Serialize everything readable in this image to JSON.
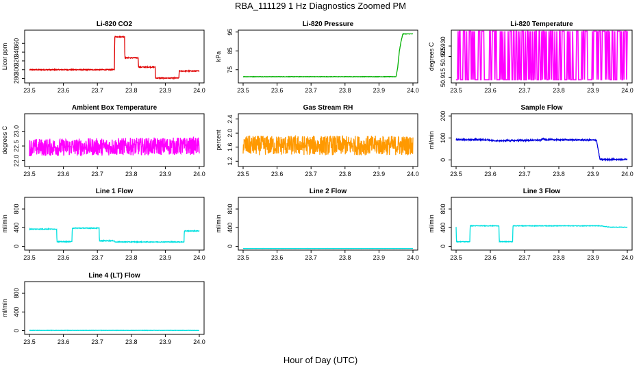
{
  "page": {
    "title": "RBA_111129  1 Hz Diagnostics Zoomed PM",
    "xlabel": "Hour of Day (UTC)"
  },
  "chart_data": [
    {
      "id": "co2",
      "type": "line",
      "title": "Li-820 CO2",
      "ylabel": "Licor ppm",
      "color": "#e00000",
      "xlim": [
        23.5,
        24.0
      ],
      "ylim": [
        270,
        390
      ],
      "yticks": [
        280,
        300,
        320,
        340,
        360
      ],
      "xticks": [
        23.5,
        23.6,
        23.7,
        23.8,
        23.9,
        24.0
      ],
      "noise": 1.0,
      "x": [
        23.5,
        23.75,
        23.751,
        23.78,
        23.781,
        23.82,
        23.821,
        23.87,
        23.871,
        23.94,
        23.941,
        24.0
      ],
      "y": [
        300,
        300,
        375,
        375,
        327,
        327,
        306,
        306,
        281,
        281,
        297,
        297
      ]
    },
    {
      "id": "pressure",
      "type": "line",
      "title": "Li-820 Pressure",
      "ylabel": "kPa",
      "color": "#00b000",
      "xlim": [
        23.5,
        24.0
      ],
      "ylim": [
        68,
        96
      ],
      "yticks": [
        75,
        85,
        95
      ],
      "xticks": [
        23.5,
        23.6,
        23.7,
        23.8,
        23.9,
        24.0
      ],
      "noise": 0.1,
      "x": [
        23.5,
        23.95,
        23.955,
        23.96,
        23.965,
        23.97,
        24.0
      ],
      "y": [
        71.3,
        71.3,
        76,
        85,
        90,
        94,
        94
      ]
    },
    {
      "id": "licor_temp",
      "type": "line",
      "title": "Li-820 Temperature",
      "ylabel": "degrees C",
      "color": "#ff00ff",
      "xlim": [
        23.5,
        24.0
      ],
      "ylim": [
        50.9125,
        50.9375
      ],
      "yticks": [
        50.915,
        50.925,
        50.93
      ],
      "xticks": [
        23.5,
        23.6,
        23.7,
        23.8,
        23.9,
        24.0
      ],
      "pattern": "binary",
      "levels": [
        50.914,
        50.937
      ],
      "x": [
        23.5,
        24.0
      ],
      "y": [
        50.914,
        50.937
      ]
    },
    {
      "id": "ambient",
      "type": "line",
      "title": "Ambient Box Temperature",
      "ylabel": "degrees C",
      "color": "#ff00ff",
      "xlim": [
        23.5,
        24.0
      ],
      "ylim": [
        21.8,
        23.6
      ],
      "yticks": [
        22.0,
        22.5,
        23.0
      ],
      "xticks": [
        23.5,
        23.6,
        23.7,
        23.8,
        23.9,
        24.0
      ],
      "noise": 0.3,
      "x": [
        23.5,
        24.0
      ],
      "y": [
        22.45,
        22.5
      ]
    },
    {
      "id": "rh",
      "type": "line",
      "title": "Gas Stream RH",
      "ylabel": "percent",
      "color": "#ff9900",
      "xlim": [
        23.5,
        24.0
      ],
      "ylim": [
        1.05,
        2.55
      ],
      "yticks": [
        1.2,
        1.6,
        2.0,
        2.4
      ],
      "xticks": [
        23.5,
        23.6,
        23.7,
        23.8,
        23.9,
        24.0
      ],
      "noise": 0.28,
      "x": [
        23.5,
        24.0
      ],
      "y": [
        1.65,
        1.65
      ]
    },
    {
      "id": "sample_flow",
      "type": "line",
      "title": "Sample Flow",
      "ylabel": "ml/min",
      "color": "#0000dd",
      "xlim": [
        23.5,
        24.0
      ],
      "ylim": [
        -30,
        210
      ],
      "yticks": [
        0,
        100,
        200
      ],
      "xticks": [
        23.5,
        23.6,
        23.7,
        23.8,
        23.9,
        24.0
      ],
      "noise": 3,
      "x": [
        23.5,
        23.59,
        23.61,
        23.75,
        23.751,
        23.76,
        23.91,
        23.92,
        24.0
      ],
      "y": [
        92,
        92,
        87,
        90,
        98,
        92,
        90,
        2,
        2
      ]
    },
    {
      "id": "line1",
      "type": "line",
      "title": "Line 1 Flow",
      "ylabel": "ml/min",
      "color": "#00e0e0",
      "xlim": [
        23.5,
        24.0
      ],
      "ylim": [
        -80,
        1050
      ],
      "yticks": [
        0,
        400,
        800
      ],
      "xticks": [
        23.5,
        23.6,
        23.7,
        23.8,
        23.9,
        24.0
      ],
      "noise": 8,
      "x": [
        23.5,
        23.58,
        23.581,
        23.625,
        23.626,
        23.705,
        23.706,
        23.75,
        23.751,
        23.955,
        23.956,
        24.0
      ],
      "y": [
        370,
        370,
        100,
        100,
        390,
        390,
        120,
        120,
        95,
        95,
        330,
        330
      ]
    },
    {
      "id": "line2",
      "type": "line",
      "title": "Line 2 Flow",
      "ylabel": "ml/min",
      "color": "#00e0e0",
      "xlim": [
        23.5,
        24.0
      ],
      "ylim": [
        -80,
        1050
      ],
      "yticks": [
        0,
        400,
        800
      ],
      "xticks": [
        23.5,
        23.6,
        23.7,
        23.8,
        23.9,
        24.0
      ],
      "noise": 1,
      "x": [
        23.5,
        24.0
      ],
      "y": [
        -45,
        -45
      ]
    },
    {
      "id": "line3",
      "type": "line",
      "title": "Line 3 Flow",
      "ylabel": "ml/min",
      "color": "#00e0e0",
      "xlim": [
        23.5,
        24.0
      ],
      "ylim": [
        -80,
        1050
      ],
      "yticks": [
        0,
        400,
        800
      ],
      "xticks": [
        23.5,
        23.6,
        23.7,
        23.8,
        23.9,
        24.0
      ],
      "noise": 6,
      "x": [
        23.5,
        23.501,
        23.54,
        23.541,
        23.625,
        23.626,
        23.665,
        23.666,
        23.92,
        23.95,
        24.0
      ],
      "y": [
        420,
        100,
        100,
        440,
        440,
        100,
        100,
        440,
        440,
        410,
        410
      ]
    },
    {
      "id": "line4",
      "type": "line",
      "title": "Line 4 (LT) Flow",
      "ylabel": "ml/min",
      "color": "#00e0e0",
      "xlim": [
        23.5,
        24.0
      ],
      "ylim": [
        -80,
        1050
      ],
      "yticks": [
        0,
        400,
        800
      ],
      "xticks": [
        23.5,
        23.6,
        23.7,
        23.8,
        23.9,
        24.0
      ],
      "noise": 3,
      "x": [
        23.5,
        24.0
      ],
      "y": [
        5,
        5
      ]
    }
  ]
}
